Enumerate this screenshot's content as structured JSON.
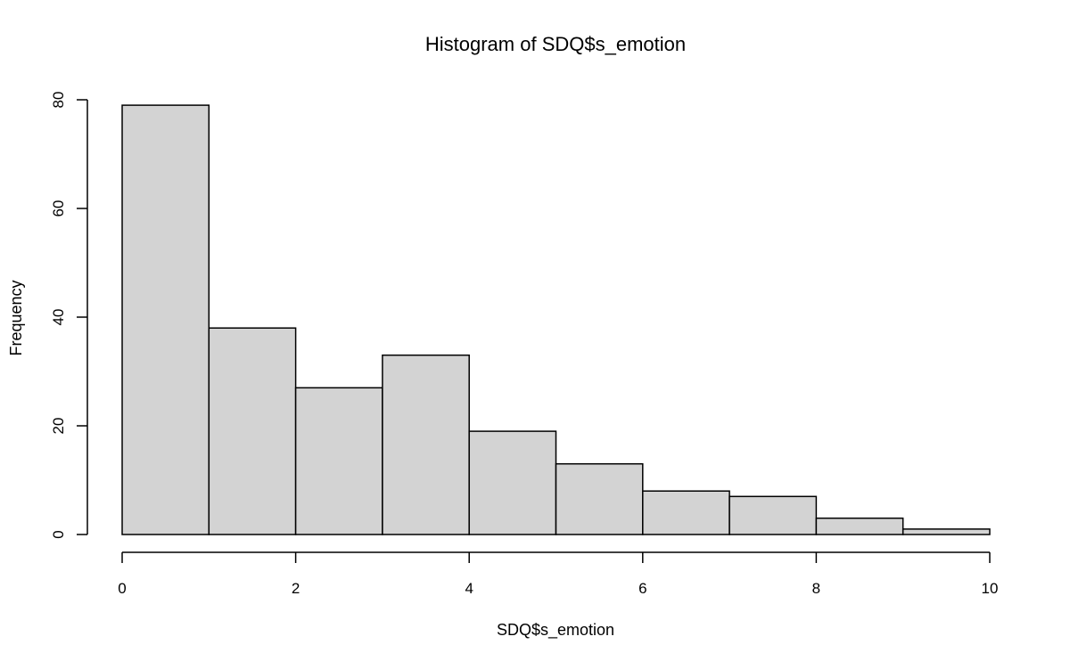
{
  "chart_data": {
    "type": "bar",
    "histogram": true,
    "title": "Histogram of SDQ$s_emotion",
    "xlabel": "SDQ$s_emotion",
    "ylabel": "Frequency",
    "bin_edges": [
      0,
      1,
      2,
      3,
      4,
      5,
      6,
      7,
      8,
      9,
      10
    ],
    "values": [
      79,
      38,
      27,
      33,
      19,
      13,
      8,
      7,
      3,
      1
    ],
    "xlim": [
      0,
      10
    ],
    "ylim": [
      0,
      80
    ],
    "x_ticks": [
      0,
      2,
      4,
      6,
      8,
      10
    ],
    "x_tick_labels": [
      "0",
      "2",
      "4",
      "6",
      "8",
      "10"
    ],
    "y_ticks": [
      0,
      20,
      40,
      60,
      80
    ],
    "y_tick_labels": [
      "0",
      "20",
      "40",
      "60",
      "80"
    ],
    "grid": false,
    "legend": "none",
    "bar_fill": "#d3d3d3",
    "bar_stroke": "#000000"
  }
}
